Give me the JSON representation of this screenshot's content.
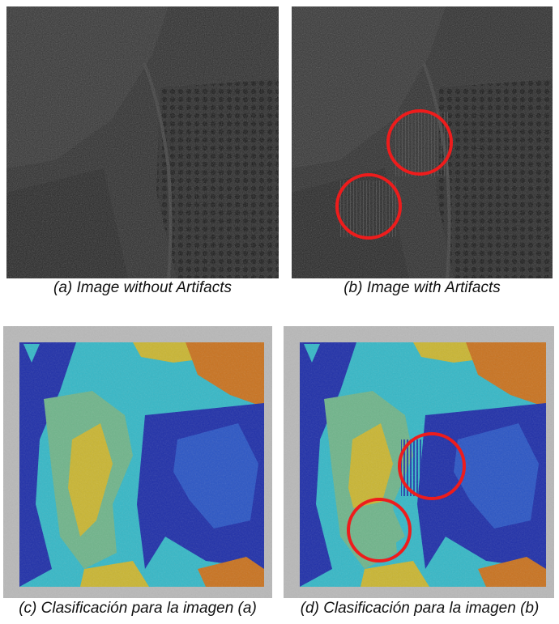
{
  "figure": {
    "panels": [
      {
        "id": "a",
        "caption": "(a) Image without Artifacts",
        "kind": "aerial-grayscale",
        "artifact_markers": 0
      },
      {
        "id": "b",
        "caption": "(b) Image with Artifacts",
        "kind": "aerial-grayscale",
        "artifact_markers": 2
      },
      {
        "id": "c",
        "caption": "(c) Clasificación para la imagen (a)",
        "kind": "classification-map",
        "artifact_markers": 0
      },
      {
        "id": "d",
        "caption": "(d) Clasificación para la imagen (b)",
        "kind": "classification-map",
        "artifact_markers": 2
      }
    ],
    "marker_color": "#ee1c1c",
    "class_colors": [
      "#1f2fa8",
      "#2a55c4",
      "#35b7c6",
      "#6fb48a",
      "#c9b532",
      "#c8721f"
    ]
  }
}
